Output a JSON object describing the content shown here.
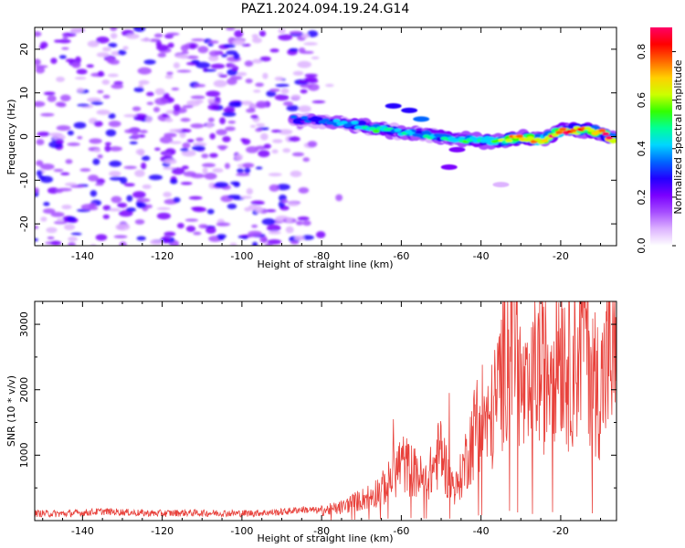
{
  "title": "PAZ1.2024.094.19.24.G14",
  "chart_data": [
    {
      "type": "heatmap",
      "xlabel": "Height of straight line (km)",
      "ylabel": "Frequency (Hz)",
      "xlim": [
        -152,
        -6
      ],
      "ylim": [
        -25,
        25
      ],
      "xticks": [
        -140,
        -120,
        -100,
        -80,
        -60,
        -40,
        -20
      ],
      "yticks": [
        -20,
        -10,
        0,
        10,
        20
      ],
      "colorbar": {
        "label": "Normalized spectral amplitude",
        "range": [
          0,
          0.9
        ],
        "ticks": [
          "0.0",
          "0.2",
          "0.4",
          "0.6",
          "0.8"
        ],
        "colormap": [
          "#ffffff",
          "#ddb3ff",
          "#a64dff",
          "#7a00ff",
          "#2200ff",
          "#0066ff",
          "#00d6ff",
          "#00ff99",
          "#33ff00",
          "#ccff00",
          "#ffd000",
          "#ff6600",
          "#ff0000",
          "#ff0066"
        ]
      },
      "ridge": {
        "x": [
          -87,
          -80,
          -75,
          -70,
          -65,
          -60,
          -55,
          -50,
          -45,
          -40,
          -35,
          -30,
          -25,
          -20,
          -15,
          -10,
          -6
        ],
        "frequency": [
          4,
          3.5,
          3,
          2.5,
          1.5,
          1,
          0.5,
          0,
          -0.5,
          -1,
          -1,
          0,
          -1,
          1.5,
          1.5,
          1,
          -1
        ],
        "amplitude": [
          0.3,
          0.35,
          0.4,
          0.45,
          0.5,
          0.45,
          0.4,
          0.45,
          0.5,
          0.5,
          0.55,
          0.8,
          0.75,
          0.85,
          0.7,
          0.8,
          0.85
        ]
      },
      "noise_region_x": [
        -152,
        -82
      ]
    },
    {
      "type": "line",
      "xlabel": "Height of straight line (km)",
      "ylabel": "SNR (10 * v/v)",
      "xlim": [
        -152,
        -6
      ],
      "ylim": [
        0,
        3350
      ],
      "xticks": [
        -140,
        -120,
        -100,
        -80,
        -60,
        -40,
        -20
      ],
      "yticks": [
        1000,
        2000,
        3000
      ],
      "series": [
        {
          "color": "#e8413b",
          "x": [
            -152,
            -145,
            -140,
            -135,
            -130,
            -125,
            -120,
            -115,
            -110,
            -105,
            -100,
            -95,
            -90,
            -85,
            -80,
            -75,
            -72,
            -70,
            -68,
            -66,
            -64,
            -62,
            -60,
            -58,
            -56,
            -54,
            -52,
            -50,
            -48,
            -46,
            -44,
            -42,
            -40,
            -38,
            -36,
            -34,
            -32,
            -30,
            -28,
            -26,
            -24,
            -22,
            -20,
            -18,
            -16,
            -14,
            -12,
            -10,
            -8,
            -6
          ],
          "y": [
            110,
            105,
            120,
            140,
            130,
            115,
            110,
            120,
            115,
            115,
            110,
            120,
            130,
            170,
            150,
            200,
            280,
            320,
            380,
            450,
            520,
            700,
            900,
            800,
            700,
            600,
            800,
            1100,
            600,
            500,
            900,
            1300,
            1700,
            1400,
            1900,
            2500,
            3300,
            2000,
            1700,
            2400,
            2200,
            2600,
            2800,
            2300,
            2500,
            3100,
            2200,
            2000,
            2500,
            2300
          ],
          "peaks": {
            "x": [
              -62,
              -56,
              -48,
              -41,
              -32,
              -14,
              -7
            ],
            "y": [
              1550,
              950,
              1950,
              2150,
              3350,
              3250,
              2750
            ]
          }
        }
      ]
    }
  ]
}
